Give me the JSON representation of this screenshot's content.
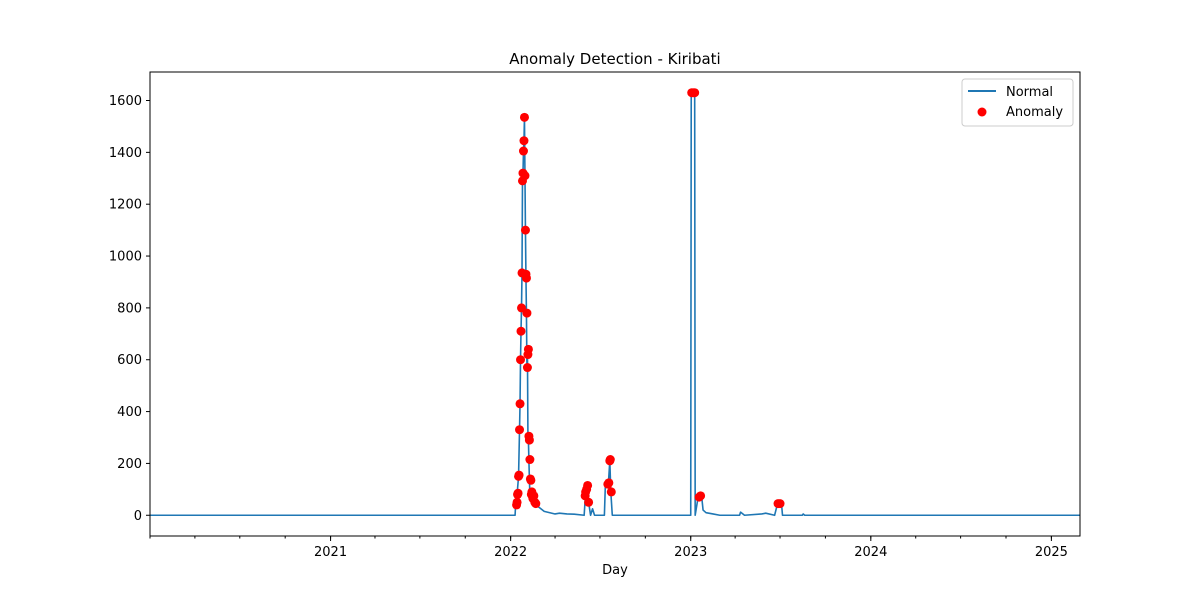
{
  "chart_data": {
    "type": "line",
    "title": "Anomaly Detection - Kiribati",
    "xlabel": "Day",
    "ylabel": "",
    "xlim": [
      "2020-01-01",
      "2025-02-28"
    ],
    "ylim": [
      -80,
      1710
    ],
    "x_ticks": [
      "2021",
      "2022",
      "2023",
      "2024",
      "2025"
    ],
    "y_ticks": [
      0,
      200,
      400,
      600,
      800,
      1000,
      1200,
      1400,
      1600
    ],
    "grid": false,
    "legend": {
      "position": "top-right",
      "entries": [
        "Normal",
        "Anomaly"
      ]
    },
    "colors": {
      "normal": "#1f77b4",
      "anomaly": "#ff0000"
    },
    "series": [
      {
        "name": "Normal",
        "type": "line",
        "points": [
          [
            "2020-01-01",
            0
          ],
          [
            "2022-01-10",
            0
          ],
          [
            "2022-01-11",
            40
          ],
          [
            "2022-01-14",
            80
          ],
          [
            "2022-01-17",
            150
          ],
          [
            "2022-01-19",
            330
          ],
          [
            "2022-01-20",
            430
          ],
          [
            "2022-01-21",
            600
          ],
          [
            "2022-01-22",
            710
          ],
          [
            "2022-01-23",
            800
          ],
          [
            "2022-01-24",
            935
          ],
          [
            "2022-01-25",
            1290
          ],
          [
            "2022-01-26",
            1320
          ],
          [
            "2022-01-27",
            1405
          ],
          [
            "2022-01-28",
            1445
          ],
          [
            "2022-01-29",
            1535
          ],
          [
            "2022-01-30",
            1310
          ],
          [
            "2022-01-31",
            1100
          ],
          [
            "2022-02-01",
            920
          ],
          [
            "2022-02-02",
            780
          ],
          [
            "2022-02-03",
            570
          ],
          [
            "2022-02-04",
            640
          ],
          [
            "2022-02-05",
            310
          ],
          [
            "2022-02-06",
            290
          ],
          [
            "2022-02-07",
            210
          ],
          [
            "2022-02-08",
            140
          ],
          [
            "2022-02-09",
            80
          ],
          [
            "2022-02-13",
            60
          ],
          [
            "2022-02-18",
            45
          ],
          [
            "2022-03-10",
            15
          ],
          [
            "2022-04-01",
            5
          ],
          [
            "2022-04-10",
            8
          ],
          [
            "2022-04-25",
            5
          ],
          [
            "2022-05-10",
            4
          ],
          [
            "2022-05-30",
            0
          ],
          [
            "2022-06-02",
            90
          ],
          [
            "2022-06-05",
            115
          ],
          [
            "2022-06-08",
            50
          ],
          [
            "2022-06-12",
            0
          ],
          [
            "2022-06-16",
            25
          ],
          [
            "2022-06-20",
            0
          ],
          [
            "2022-07-10",
            0
          ],
          [
            "2022-07-12",
            120
          ],
          [
            "2022-07-18",
            120
          ],
          [
            "2022-07-21",
            210
          ],
          [
            "2022-07-23",
            90
          ],
          [
            "2022-07-26",
            0
          ],
          [
            "2023-01-01",
            0
          ],
          [
            "2023-01-02",
            1630
          ],
          [
            "2023-01-09",
            1630
          ],
          [
            "2023-01-10",
            0
          ],
          [
            "2023-01-16",
            70
          ],
          [
            "2023-01-23",
            75
          ],
          [
            "2023-01-26",
            20
          ],
          [
            "2023-02-01",
            10
          ],
          [
            "2023-02-15",
            5
          ],
          [
            "2023-03-01",
            0
          ],
          [
            "2023-04-10",
            0
          ],
          [
            "2023-04-12",
            12
          ],
          [
            "2023-04-20",
            0
          ],
          [
            "2023-05-25",
            5
          ],
          [
            "2023-06-02",
            8
          ],
          [
            "2023-06-20",
            0
          ],
          [
            "2023-06-26",
            45
          ],
          [
            "2023-07-04",
            45
          ],
          [
            "2023-07-06",
            0
          ],
          [
            "2023-08-15",
            0
          ],
          [
            "2023-08-17",
            5
          ],
          [
            "2023-08-20",
            0
          ],
          [
            "2025-02-28",
            0
          ]
        ]
      },
      {
        "name": "Anomaly",
        "type": "scatter",
        "points": [
          [
            "2022-01-13",
            40
          ],
          [
            "2022-01-14",
            50
          ],
          [
            "2022-01-15",
            80
          ],
          [
            "2022-01-16",
            85
          ],
          [
            "2022-01-17",
            150
          ],
          [
            "2022-01-18",
            155
          ],
          [
            "2022-01-19",
            330
          ],
          [
            "2022-01-20",
            430
          ],
          [
            "2022-01-21",
            600
          ],
          [
            "2022-01-22",
            710
          ],
          [
            "2022-01-23",
            800
          ],
          [
            "2022-01-24",
            935
          ],
          [
            "2022-01-25",
            1290
          ],
          [
            "2022-01-26",
            1320
          ],
          [
            "2022-01-27",
            1405
          ],
          [
            "2022-01-28",
            1445
          ],
          [
            "2022-01-29",
            1535
          ],
          [
            "2022-01-30",
            1310
          ],
          [
            "2022-01-31",
            1100
          ],
          [
            "2022-02-01",
            930
          ],
          [
            "2022-02-02",
            915
          ],
          [
            "2022-02-03",
            780
          ],
          [
            "2022-02-04",
            570
          ],
          [
            "2022-02-05",
            620
          ],
          [
            "2022-02-06",
            640
          ],
          [
            "2022-02-07",
            305
          ],
          [
            "2022-02-08",
            290
          ],
          [
            "2022-02-09",
            215
          ],
          [
            "2022-02-10",
            140
          ],
          [
            "2022-02-11",
            135
          ],
          [
            "2022-02-12",
            80
          ],
          [
            "2022-02-13",
            90
          ],
          [
            "2022-02-15",
            65
          ],
          [
            "2022-02-17",
            75
          ],
          [
            "2022-02-19",
            50
          ],
          [
            "2022-02-21",
            45
          ],
          [
            "2022-06-01",
            75
          ],
          [
            "2022-06-02",
            90
          ],
          [
            "2022-06-04",
            100
          ],
          [
            "2022-06-06",
            115
          ],
          [
            "2022-06-08",
            50
          ],
          [
            "2022-07-17",
            120
          ],
          [
            "2022-07-19",
            125
          ],
          [
            "2022-07-21",
            210
          ],
          [
            "2022-07-22",
            215
          ],
          [
            "2022-07-24",
            90
          ],
          [
            "2023-01-03",
            1630
          ],
          [
            "2023-01-06",
            1630
          ],
          [
            "2023-01-09",
            1630
          ],
          [
            "2023-01-18",
            70
          ],
          [
            "2023-01-21",
            75
          ],
          [
            "2023-06-27",
            45
          ],
          [
            "2023-07-01",
            45
          ]
        ]
      }
    ]
  }
}
